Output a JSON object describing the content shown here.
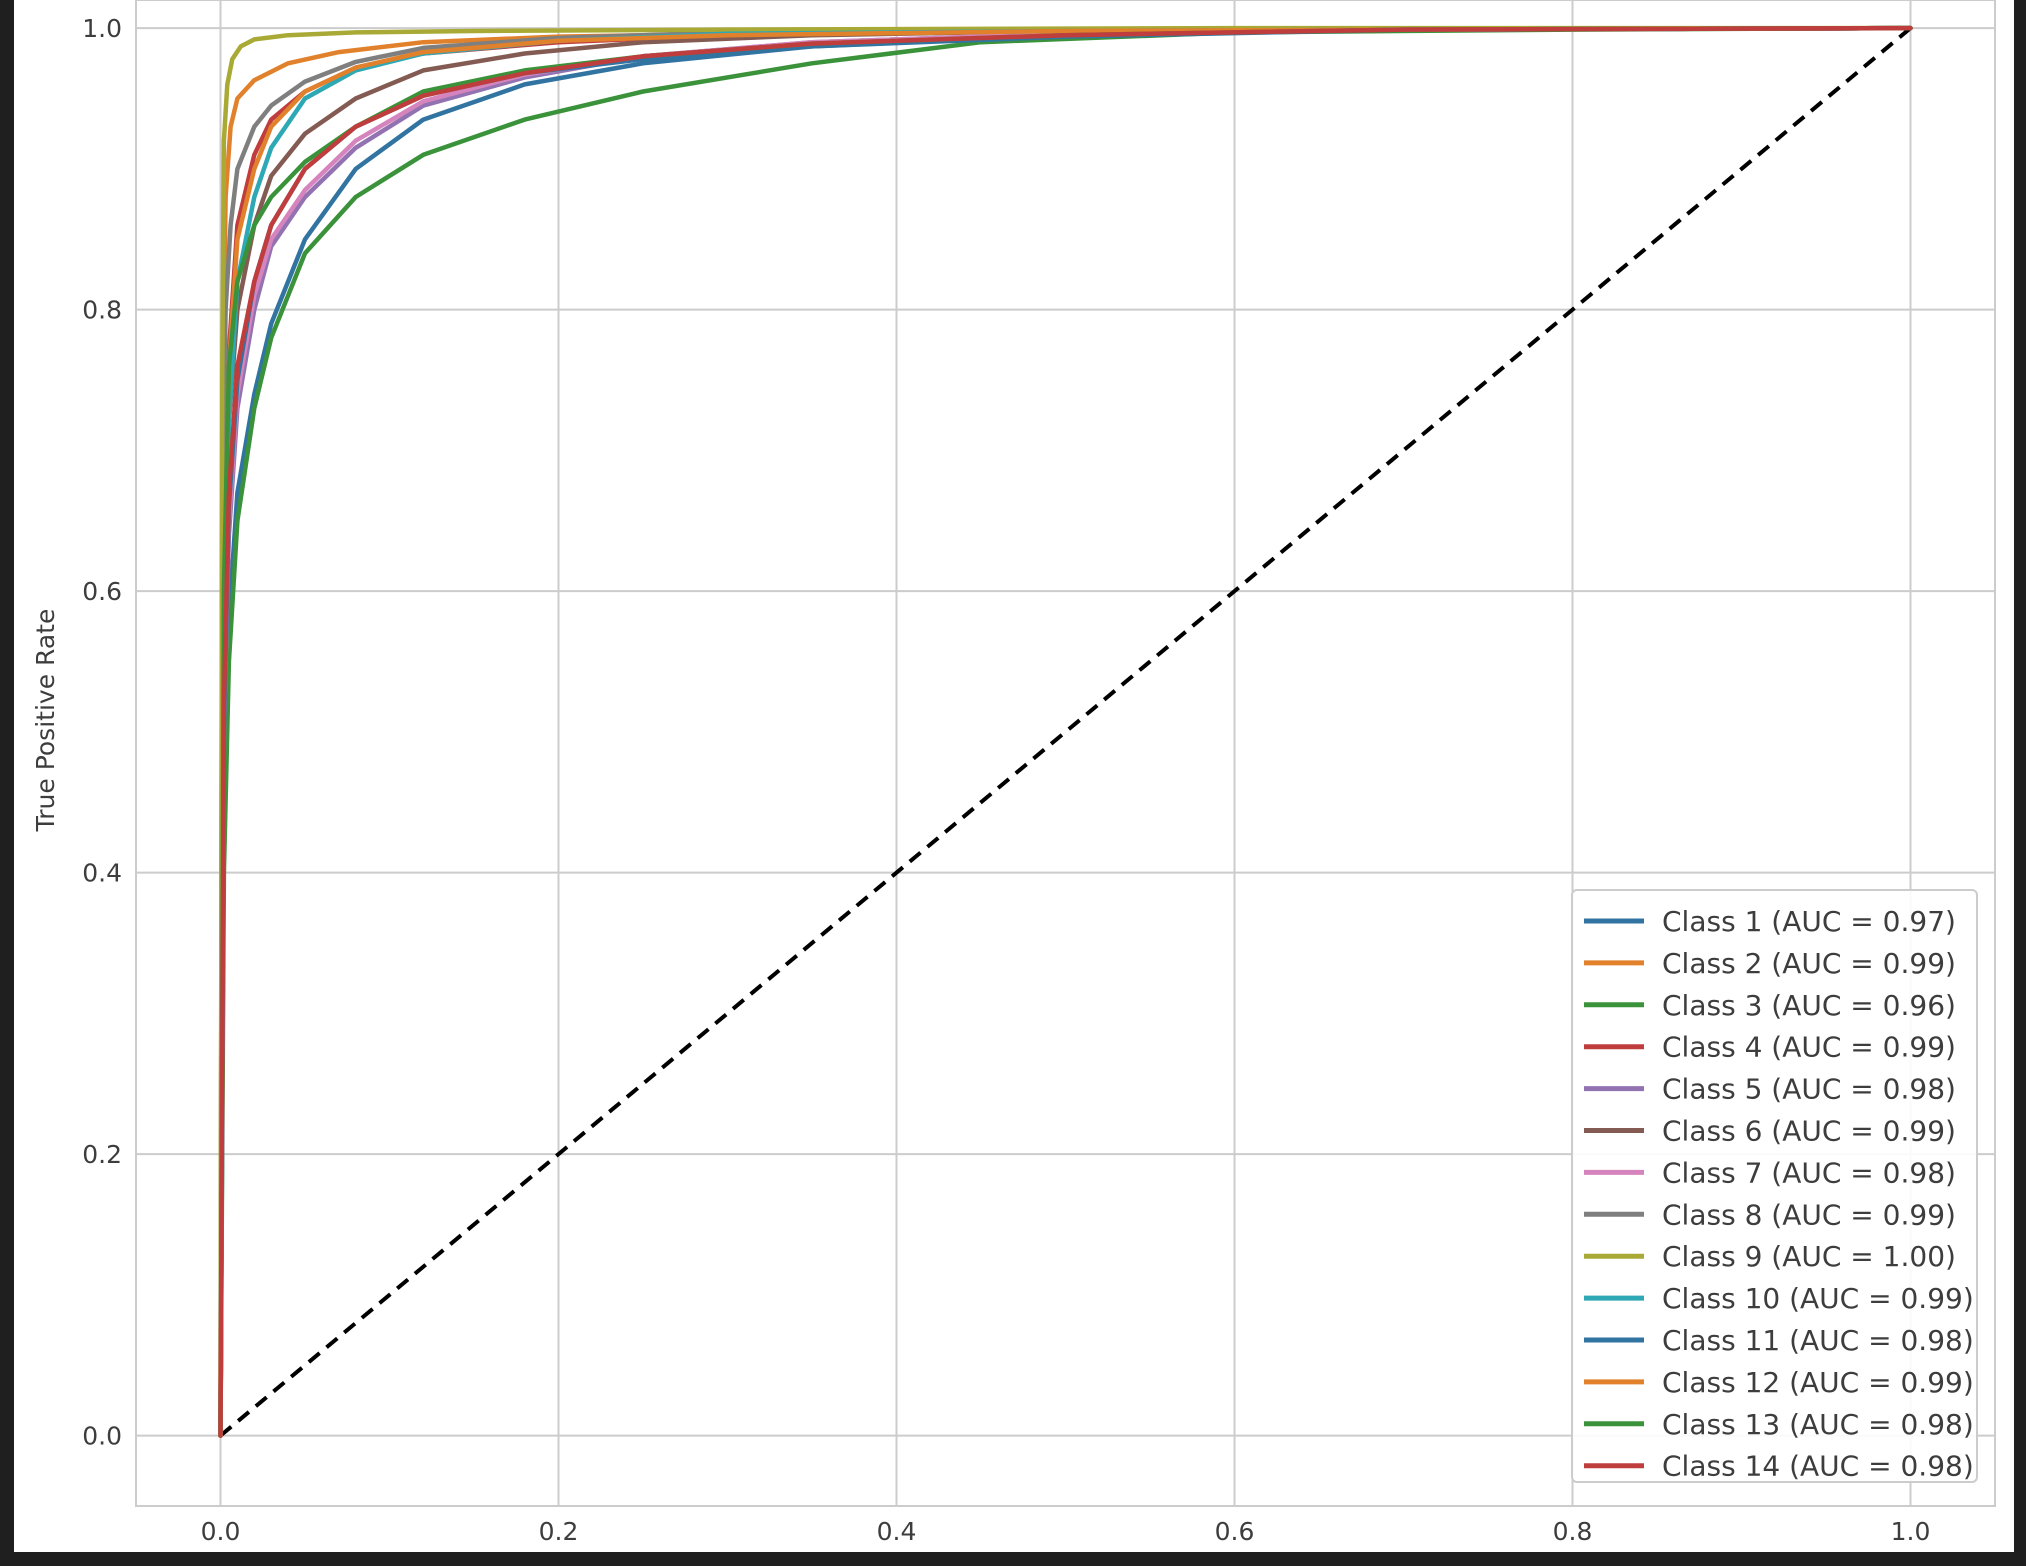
{
  "chart_data": {
    "type": "line",
    "title": "",
    "xlabel": "",
    "ylabel": "True Positive Rate",
    "xlim": [
      -0.05,
      1.05
    ],
    "ylim": [
      -0.05,
      1.02
    ],
    "xticks": [
      0.0,
      0.2,
      0.4,
      0.6,
      0.8,
      1.0
    ],
    "yticks": [
      0.0,
      0.2,
      0.4,
      0.6,
      0.8,
      1.0
    ],
    "xtick_labels": [
      "0.0",
      "0.2",
      "0.4",
      "0.6",
      "0.8",
      "1.0"
    ],
    "ytick_labels": [
      "0.0",
      "0.2",
      "0.4",
      "0.6",
      "0.8",
      "1.0"
    ],
    "grid": true,
    "legend_position": "lower-right",
    "diagonal": {
      "x": [
        0,
        1
      ],
      "y": [
        0,
        1
      ],
      "color": "#000000",
      "style": "dashed"
    },
    "series": [
      {
        "name": "Class 1 (AUC = 0.97)",
        "color": "#3274a1",
        "x": [
          0,
          0.002,
          0.005,
          0.01,
          0.02,
          0.03,
          0.05,
          0.08,
          0.12,
          0.18,
          0.25,
          0.35,
          0.5,
          0.7,
          1.0
        ],
        "y": [
          0,
          0.45,
          0.58,
          0.67,
          0.74,
          0.79,
          0.85,
          0.9,
          0.935,
          0.96,
          0.975,
          0.987,
          0.995,
          0.999,
          1.0
        ]
      },
      {
        "name": "Class 2 (AUC = 0.99)",
        "color": "#e1812c",
        "x": [
          0,
          0.001,
          0.003,
          0.006,
          0.01,
          0.02,
          0.04,
          0.07,
          0.12,
          0.2,
          0.35,
          0.6,
          1.0
        ],
        "y": [
          0,
          0.7,
          0.88,
          0.93,
          0.95,
          0.963,
          0.975,
          0.983,
          0.99,
          0.994,
          0.997,
          0.999,
          1.0
        ]
      },
      {
        "name": "Class 3 (AUC = 0.96)",
        "color": "#3a923a",
        "x": [
          0,
          0.002,
          0.005,
          0.01,
          0.02,
          0.03,
          0.05,
          0.08,
          0.12,
          0.18,
          0.25,
          0.35,
          0.45,
          0.6,
          0.8,
          1.0
        ],
        "y": [
          0,
          0.4,
          0.55,
          0.65,
          0.73,
          0.78,
          0.84,
          0.88,
          0.91,
          0.935,
          0.955,
          0.975,
          0.99,
          0.997,
          0.999,
          1.0
        ]
      },
      {
        "name": "Class 4 (AUC = 0.99)",
        "color": "#c03d3e",
        "x": [
          0,
          0.002,
          0.005,
          0.01,
          0.02,
          0.03,
          0.05,
          0.08,
          0.12,
          0.2,
          0.3,
          0.5,
          0.7,
          1.0
        ],
        "y": [
          0,
          0.6,
          0.77,
          0.86,
          0.91,
          0.935,
          0.955,
          0.972,
          0.982,
          0.99,
          0.995,
          0.998,
          0.999,
          1.0
        ]
      },
      {
        "name": "Class 5 (AUC = 0.98)",
        "color": "#9372b2",
        "x": [
          0,
          0.002,
          0.005,
          0.01,
          0.02,
          0.03,
          0.05,
          0.08,
          0.12,
          0.18,
          0.25,
          0.35,
          0.5,
          0.7,
          1.0
        ],
        "y": [
          0,
          0.5,
          0.64,
          0.73,
          0.8,
          0.845,
          0.88,
          0.915,
          0.945,
          0.965,
          0.98,
          0.99,
          0.996,
          0.999,
          1.0
        ]
      },
      {
        "name": "Class 6 (AUC = 0.99)",
        "color": "#845b53",
        "x": [
          0,
          0.002,
          0.005,
          0.01,
          0.02,
          0.03,
          0.05,
          0.08,
          0.12,
          0.18,
          0.25,
          0.35,
          0.5,
          0.7,
          1.0
        ],
        "y": [
          0,
          0.55,
          0.72,
          0.8,
          0.86,
          0.895,
          0.925,
          0.95,
          0.97,
          0.982,
          0.99,
          0.995,
          0.998,
          0.999,
          1.0
        ]
      },
      {
        "name": "Class 7 (AUC = 0.98)",
        "color": "#d684bd",
        "x": [
          0,
          0.002,
          0.005,
          0.01,
          0.02,
          0.03,
          0.05,
          0.08,
          0.12,
          0.18,
          0.25,
          0.35,
          0.5,
          0.7,
          1.0
        ],
        "y": [
          0,
          0.5,
          0.65,
          0.74,
          0.81,
          0.85,
          0.885,
          0.92,
          0.948,
          0.967,
          0.98,
          0.99,
          0.996,
          0.999,
          1.0
        ]
      },
      {
        "name": "Class 8 (AUC = 0.99)",
        "color": "#7f7f7f",
        "x": [
          0,
          0.001,
          0.003,
          0.006,
          0.01,
          0.02,
          0.03,
          0.05,
          0.08,
          0.12,
          0.2,
          0.3,
          0.5,
          1.0
        ],
        "y": [
          0,
          0.65,
          0.8,
          0.86,
          0.9,
          0.93,
          0.945,
          0.962,
          0.976,
          0.986,
          0.993,
          0.997,
          0.999,
          1.0
        ]
      },
      {
        "name": "Class 9 (AUC = 1.00)",
        "color": "#a9aa35",
        "x": [
          0,
          0.001,
          0.002,
          0.004,
          0.007,
          0.012,
          0.02,
          0.04,
          0.08,
          0.15,
          0.3,
          0.6,
          1.0
        ],
        "y": [
          0,
          0.75,
          0.92,
          0.96,
          0.978,
          0.987,
          0.992,
          0.995,
          0.997,
          0.998,
          0.999,
          1.0,
          1.0
        ]
      },
      {
        "name": "Class 10 (AUC = 0.99)",
        "color": "#2ea8b5",
        "x": [
          0,
          0.002,
          0.005,
          0.01,
          0.02,
          0.03,
          0.05,
          0.08,
          0.12,
          0.2,
          0.3,
          0.5,
          0.7,
          1.0
        ],
        "y": [
          0,
          0.55,
          0.72,
          0.82,
          0.88,
          0.915,
          0.95,
          0.97,
          0.982,
          0.991,
          0.996,
          0.998,
          0.999,
          1.0
        ]
      },
      {
        "name": "Class 11 (AUC = 0.98)",
        "color": "#3274a1",
        "x": [
          0,
          0.002,
          0.005,
          0.01,
          0.02,
          0.03,
          0.05,
          0.08,
          0.12,
          0.18,
          0.25,
          0.35,
          0.5,
          0.7,
          1.0
        ],
        "y": [
          0,
          0.5,
          0.66,
          0.75,
          0.82,
          0.86,
          0.9,
          0.93,
          0.952,
          0.968,
          0.978,
          0.987,
          0.994,
          0.999,
          1.0
        ]
      },
      {
        "name": "Class 12 (AUC = 0.99)",
        "color": "#e1812c",
        "x": [
          0,
          0.002,
          0.005,
          0.01,
          0.02,
          0.03,
          0.05,
          0.08,
          0.12,
          0.2,
          0.3,
          0.5,
          0.7,
          1.0
        ],
        "y": [
          0,
          0.58,
          0.76,
          0.85,
          0.9,
          0.93,
          0.955,
          0.972,
          0.983,
          0.991,
          0.995,
          0.998,
          0.999,
          1.0
        ]
      },
      {
        "name": "Class 13 (AUC = 0.98)",
        "color": "#3a923a",
        "x": [
          0,
          0.002,
          0.005,
          0.01,
          0.02,
          0.03,
          0.05,
          0.08,
          0.12,
          0.18,
          0.25,
          0.35,
          0.5,
          0.7,
          1.0
        ],
        "y": [
          0,
          0.6,
          0.76,
          0.82,
          0.86,
          0.88,
          0.905,
          0.93,
          0.955,
          0.97,
          0.98,
          0.989,
          0.995,
          0.999,
          1.0
        ]
      },
      {
        "name": "Class 14 (AUC = 0.98)",
        "color": "#c03d3e",
        "x": [
          0,
          0.002,
          0.005,
          0.01,
          0.02,
          0.03,
          0.05,
          0.08,
          0.12,
          0.18,
          0.25,
          0.35,
          0.5,
          0.7,
          1.0
        ],
        "y": [
          0,
          0.52,
          0.67,
          0.76,
          0.82,
          0.86,
          0.9,
          0.93,
          0.952,
          0.968,
          0.98,
          0.989,
          0.995,
          0.999,
          1.0
        ]
      }
    ]
  }
}
